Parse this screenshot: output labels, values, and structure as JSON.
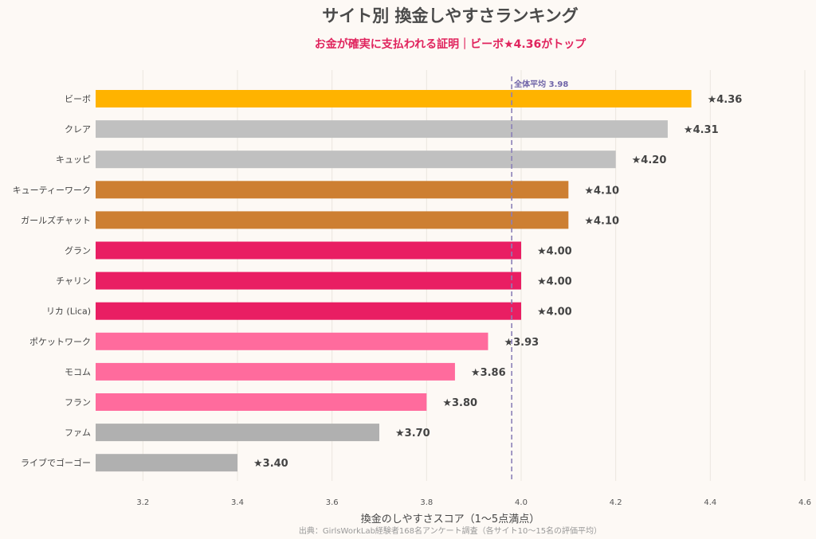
{
  "chart_data": {
    "type": "bar",
    "orientation": "horizontal",
    "title": "サイト別 換金しやすさランキング",
    "subtitle": "お金が確実に支払われる証明｜ビーボ★4.36がトップ",
    "xlabel": "換金のしやすさスコア（1〜5点満点）",
    "footnote": "出典：GirlsWorkLab経験者168名アンケート調査（各サイト10〜15名の評価平均）",
    "xlim": [
      3.1,
      4.6
    ],
    "xticks": [
      3.2,
      3.4,
      3.6,
      3.8,
      4.0,
      4.2,
      4.4,
      4.6
    ],
    "xtick_labels": [
      "3.2",
      "3.4",
      "3.6",
      "3.8",
      "4.0",
      "4.2",
      "4.4",
      "4.6"
    ],
    "grid": "vertical",
    "reference_line": {
      "value": 3.98,
      "label": "全体平均 3.98",
      "color": "#8b7fb8"
    },
    "categories": [
      "ビーボ",
      "クレア",
      "キュッピ",
      "キューティーワーク",
      "ガールズチャット",
      "グラン",
      "チャリン",
      "リカ (Lica)",
      "ポケットワーク",
      "モコム",
      "フラン",
      "ファム",
      "ライブでゴーゴー"
    ],
    "values": [
      4.36,
      4.31,
      4.2,
      4.1,
      4.1,
      4.0,
      4.0,
      4.0,
      3.93,
      3.86,
      3.8,
      3.7,
      3.4
    ],
    "value_labels": [
      "★4.36",
      "★4.31",
      "★4.20",
      "★4.10",
      "★4.10",
      "★4.00",
      "★4.00",
      "★4.00",
      "★3.93",
      "★3.86",
      "★3.80",
      "★3.70",
      "★3.40"
    ],
    "colors": [
      "#ffb300",
      "#c0c0c0",
      "#c0c0c0",
      "#cd7f32",
      "#cd7f32",
      "#e91e63",
      "#e91e63",
      "#e91e63",
      "#ff6b9d",
      "#ff6b9d",
      "#ff6b9d",
      "#b0b0b0",
      "#b0b0b0"
    ]
  }
}
